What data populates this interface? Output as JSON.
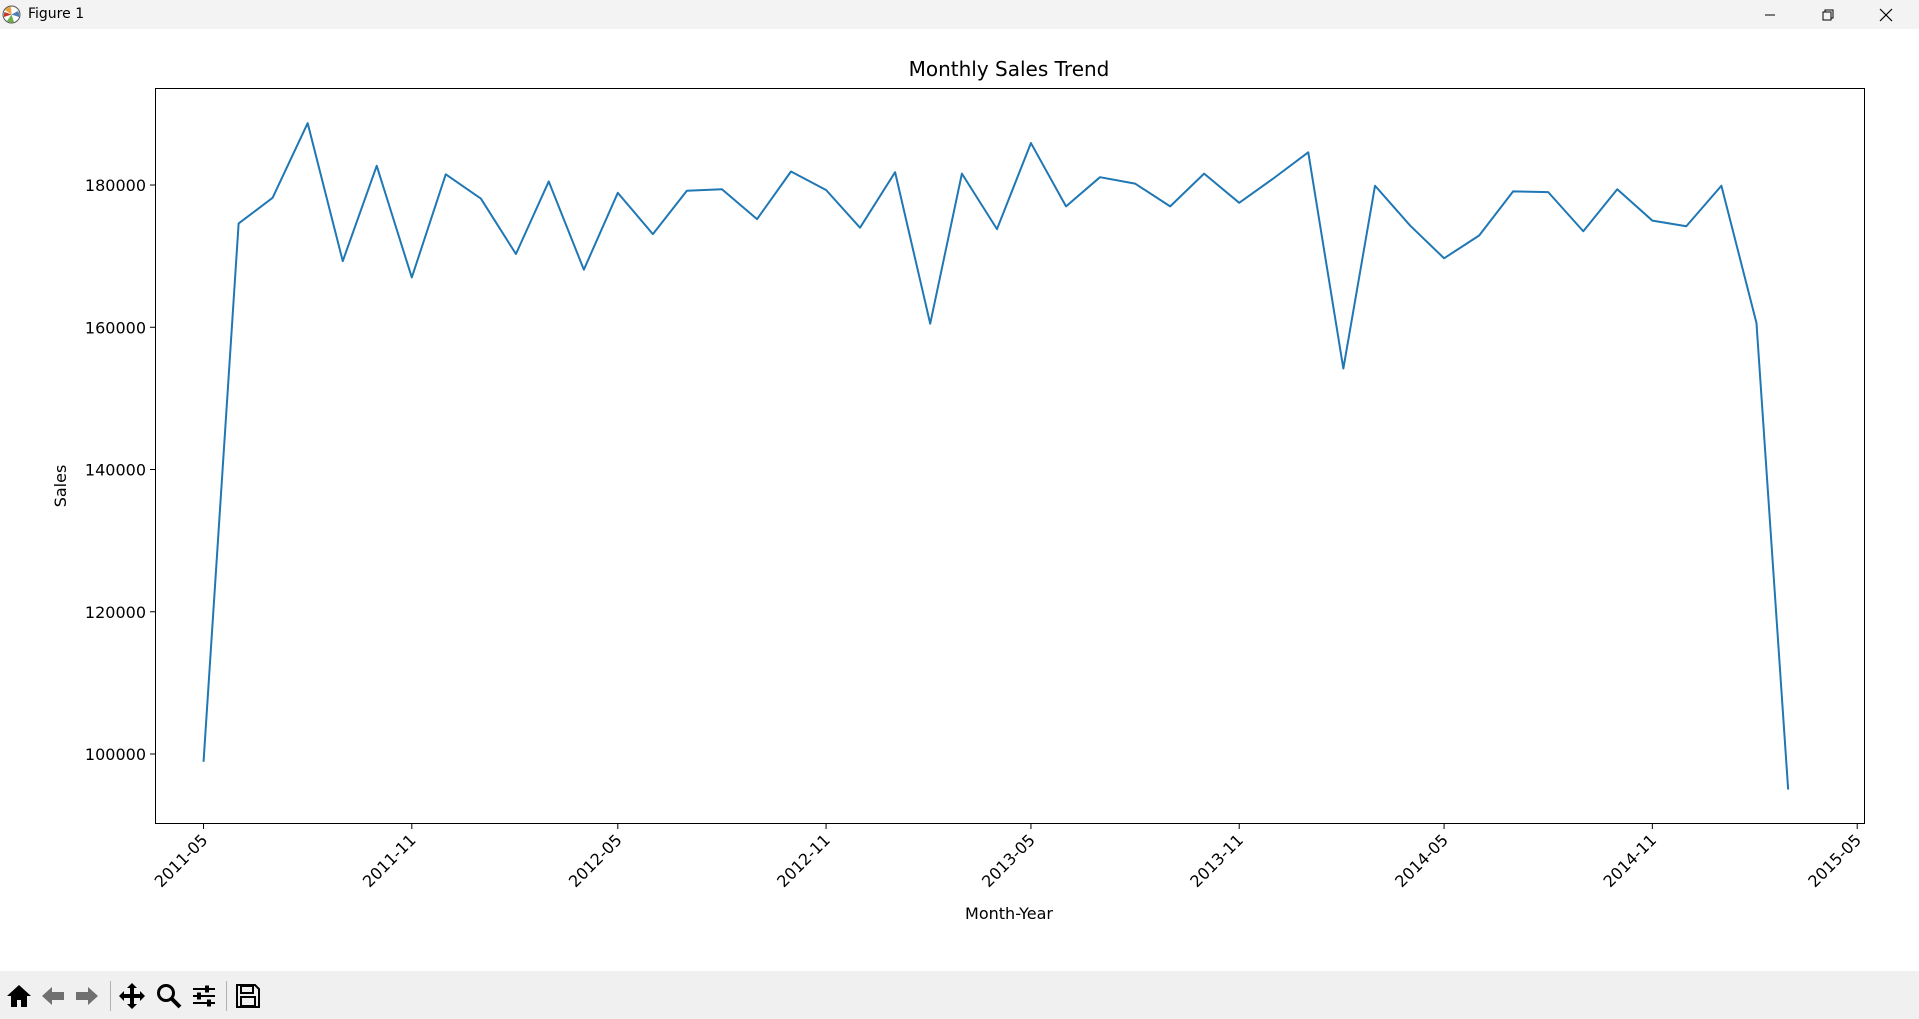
{
  "window": {
    "title": "Figure 1"
  },
  "toolbar": {
    "buttons": [
      "home-icon",
      "back-icon",
      "forward-icon",
      "pan-icon",
      "zoom-icon",
      "configure-icon",
      "save-icon"
    ]
  },
  "colors": {
    "line": "#1f77b4",
    "titlebar": "#f3f3f3",
    "toolbar": "#f0f0f0"
  },
  "chart_data": {
    "type": "line",
    "title": "Monthly Sales Trend",
    "xlabel": "Month-Year",
    "ylabel": "Sales",
    "x_ticks": [
      "2011-05",
      "2011-11",
      "2012-05",
      "2012-11",
      "2013-05",
      "2013-11",
      "2014-05",
      "2014-11",
      "2015-05"
    ],
    "y_ticks": [
      100000,
      120000,
      140000,
      160000,
      180000
    ],
    "xlim": [
      "2011-03-20",
      "2015-05-07"
    ],
    "ylim": [
      90300,
      193500
    ],
    "grid": false,
    "series": [
      {
        "x": [
          "2011-05",
          "2011-06",
          "2011-07",
          "2011-08",
          "2011-09",
          "2011-10",
          "2011-11",
          "2011-12",
          "2012-01",
          "2012-02",
          "2012-03",
          "2012-04",
          "2012-05",
          "2012-06",
          "2012-07",
          "2012-08",
          "2012-09",
          "2012-10",
          "2012-11",
          "2012-12",
          "2013-01",
          "2013-02",
          "2013-03",
          "2013-04",
          "2013-05",
          "2013-06",
          "2013-07",
          "2013-08",
          "2013-09",
          "2013-10",
          "2013-11",
          "2013-12",
          "2014-01",
          "2014-02",
          "2014-03",
          "2014-04",
          "2014-05",
          "2014-06",
          "2014-07",
          "2014-08",
          "2014-09",
          "2014-10",
          "2014-11",
          "2014-12",
          "2015-01",
          "2015-02",
          "2015-03"
        ],
        "values": [
          98900,
          174600,
          178200,
          188700,
          169300,
          182700,
          167000,
          181500,
          178100,
          170300,
          180500,
          168100,
          178900,
          173100,
          179200,
          179400,
          175200,
          181900,
          179300,
          174000,
          181800,
          160500,
          181600,
          173800,
          185900,
          177000,
          181100,
          180200,
          177000,
          181600,
          177500,
          180900,
          184600,
          154200,
          179900,
          174300,
          169700,
          172900,
          179100,
          179000,
          173500,
          179400,
          175000,
          174200,
          179900,
          160600,
          95000
        ]
      }
    ]
  }
}
